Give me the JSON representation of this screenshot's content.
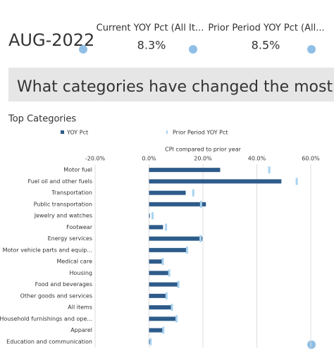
{
  "header": {
    "date": "AUG-2022",
    "kpis": [
      {
        "label": "Current YOY Pct (All It...",
        "value": "8.3%"
      },
      {
        "label": "Prior Period YOY Pct (All...",
        "value": "8.5%"
      }
    ]
  },
  "banner": "What categories have changed the most f",
  "chart_data": {
    "type": "bar",
    "orientation": "horizontal",
    "title": "Top Categories",
    "xlabel": "CPI compared to prior year",
    "categories": [
      "Motor fuel",
      "Fuel oil and other fuels",
      "Transportation",
      "Public transportation",
      "Jewelry and watches",
      "Footwear",
      "Energy services",
      "Motor vehicle parts and equip...",
      "Medical care",
      "Housing",
      "Food and beverages",
      "Other goods and services",
      "All items",
      "Household furnishings and ope...",
      "Apparel",
      "Education and communication"
    ],
    "series": [
      {
        "name": "YOY Pct",
        "color": "#2e5c8a",
        "style": "bar",
        "values": [
          26.4,
          49.1,
          13.6,
          21.1,
          0.3,
          5.2,
          19.8,
          13.8,
          5.0,
          7.6,
          10.7,
          6.4,
          8.3,
          10.1,
          5.1,
          0.3
        ]
      },
      {
        "name": "Prior Period YOY Pct",
        "color": "#a9d3f0",
        "style": "marker",
        "values": [
          44.6,
          54.8,
          16.4,
          19.3,
          1.3,
          6.3,
          19.1,
          14.1,
          5.1,
          7.5,
          10.9,
          6.5,
          8.5,
          10.2,
          5.3,
          0.6
        ]
      }
    ],
    "xlim": [
      -20,
      60
    ],
    "xticks": [
      {
        "value": -20,
        "label": "-20.0%"
      },
      {
        "value": 0,
        "label": "0.0%"
      },
      {
        "value": 20,
        "label": "20.0%"
      },
      {
        "value": 40,
        "label": "40.0%"
      },
      {
        "value": 60,
        "label": "60.0%"
      }
    ],
    "grid": true
  }
}
